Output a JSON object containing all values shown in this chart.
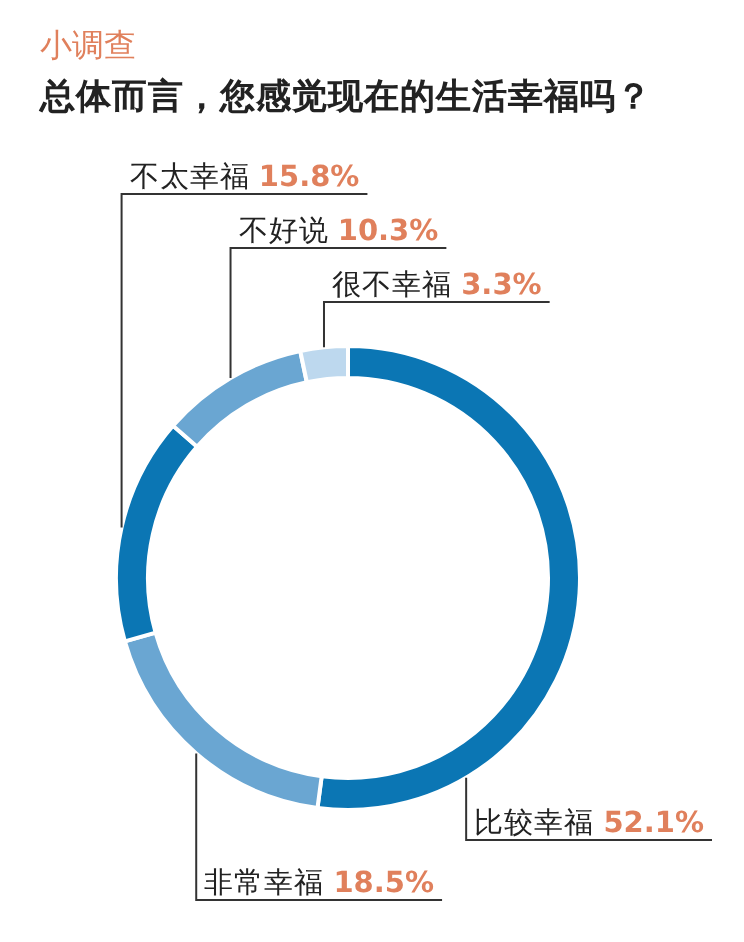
{
  "chart_data": {
    "type": "donut",
    "subtitle": "小调查",
    "title": "总体而言，您感觉现在的生活幸福吗？",
    "categories": [
      "比较幸福",
      "非常幸福",
      "不太幸福",
      "不好说",
      "很不幸福"
    ],
    "values": [
      52.1,
      18.5,
      15.8,
      10.3,
      3.3
    ],
    "value_labels": [
      "52.1%",
      "18.5%",
      "15.8%",
      "10.3%",
      "3.3%"
    ],
    "colors": [
      "#0b76b4",
      "#6aa6d2",
      "#0b76b4",
      "#6aa6d2",
      "#bdd8ee"
    ]
  }
}
